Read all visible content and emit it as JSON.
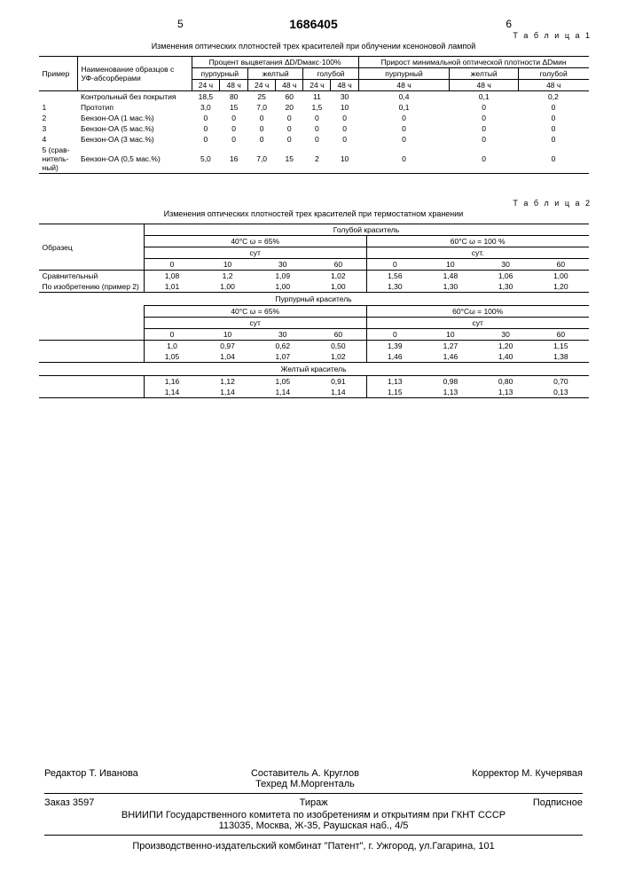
{
  "header": {
    "colLeft": "5",
    "patent": "1686405",
    "colRight": "6"
  },
  "table1": {
    "label": "Т а б л и ц а 1",
    "title": "Изменения оптических плотностей трех красителей при облучении ксеноновой лампой",
    "h1_c0": "Пример",
    "h1_c1": "Наименование образцов с УФ-абсорберами",
    "h1_c2": "Процент выцветания ΔD/Dмакс·100%",
    "h1_c3": "Прирост минимальной оптической плотности ΔDмин",
    "h2_a": "пурпурный",
    "h2_b": "желтый",
    "h2_c": "голубой",
    "h2_d": "пурпурный",
    "h2_e": "желтый",
    "h2_f": "голубой",
    "h3_24": "24 ч",
    "h3_48": "48 ч",
    "rows": [
      {
        "n": "",
        "name": "Контрольный без покрытия",
        "v": [
          "18,5",
          "80",
          "25",
          "60",
          "11",
          "30",
          "0,4",
          "0,1",
          "0,2"
        ]
      },
      {
        "n": "1",
        "name": "Прототип",
        "v": [
          "3,0",
          "15",
          "7,0",
          "20",
          "1,5",
          "10",
          "0,1",
          "0",
          "0"
        ]
      },
      {
        "n": "2",
        "name": "Бензон-OA (1 мас.%)",
        "v": [
          "0",
          "0",
          "0",
          "0",
          "0",
          "0",
          "0",
          "0",
          "0"
        ]
      },
      {
        "n": "3",
        "name": "Бензон-OA (5 мас.%)",
        "v": [
          "0",
          "0",
          "0",
          "0",
          "0",
          "0",
          "0",
          "0",
          "0"
        ]
      },
      {
        "n": "4",
        "name": "Бензон-OA (3 мас.%)",
        "v": [
          "0",
          "0",
          "0",
          "0",
          "0",
          "0",
          "0",
          "0",
          "0"
        ]
      },
      {
        "n": "5 (срав-нитель-ный)",
        "name": "Бензон-OA (0,5 мас.%)",
        "v": [
          "5,0",
          "16",
          "7,0",
          "15",
          "2",
          "10",
          "0",
          "0",
          "0"
        ]
      }
    ]
  },
  "table2": {
    "label": "Т а б л и ц а 2",
    "title": "Изменения оптических плотностей трех красителей при термостатном хранении",
    "h_sample": "Образец",
    "h_blue": "Голубой краситель",
    "h_purple": "Пурпурный краситель",
    "h_yellow": "Желтый краситель",
    "cond1": "40°C ω = 65%",
    "cond2": "60°C ω = 100 %",
    "cond3": "40°C ω = 65%",
    "cond4": "60°Cω = 100%",
    "sut": "сут",
    "sut2": "сут.",
    "days": [
      "0",
      "10",
      "30",
      "60",
      "0",
      "10",
      "30",
      "60"
    ],
    "r1_name": "Сравнительный",
    "r2_name": "По изобретению (пример 2)",
    "blue_r1": [
      "1,08",
      "1,2",
      "1,09",
      "1,02",
      "1,56",
      "1,48",
      "1,06",
      "1,00"
    ],
    "blue_r2": [
      "1,01",
      "1,00",
      "1,00",
      "1,00",
      "1,30",
      "1,30",
      "1,30",
      "1,20"
    ],
    "purp_r1": [
      "1,0",
      "0,97",
      "0,62",
      "0,50",
      "1,39",
      "1,27",
      "1,20",
      "1,15"
    ],
    "purp_r2": [
      "1,05",
      "1,04",
      "1,07",
      "1,02",
      "1,46",
      "1,46",
      "1,40",
      "1,38"
    ],
    "yell_r1": [
      "1,16",
      "1,12",
      "1,05",
      "0,91",
      "1,13",
      "0,98",
      "0,80",
      "0,70"
    ],
    "yell_r2": [
      "1,14",
      "1,14",
      "1,14",
      "1,14",
      "1,15",
      "1,13",
      "1,13",
      "0,13"
    ]
  },
  "footer": {
    "editor": "Редактор Т. Иванова",
    "compiler": "Составитель А. Круглов",
    "tech": "Техред М.Моргенталь",
    "corrector": "Корректор М. Кучерявая",
    "order": "Заказ 3597",
    "tirazh": "Тираж",
    "sub": "Подписное",
    "org": "ВНИИПИ Государственного комитета по изобретениям и открытиям при ГКНТ СССР",
    "addr": "113035, Москва, Ж-35, Раушская наб., 4/5",
    "prod": "Производственно-издательский комбинат \"Патент\", г. Ужгород, ул.Гагарина, 101"
  }
}
